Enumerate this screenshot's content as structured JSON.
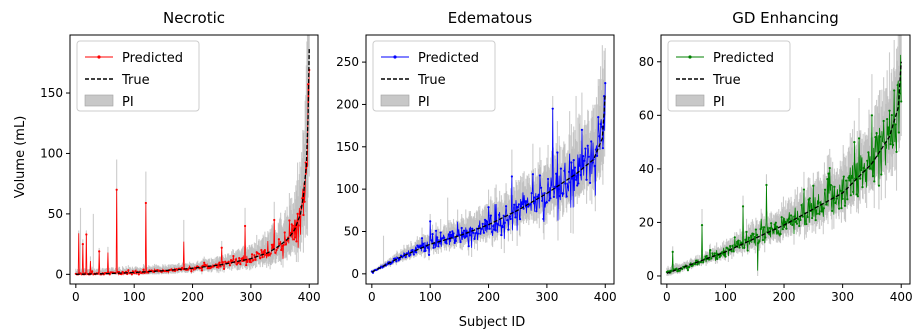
{
  "figure": {
    "xlabel": "Subject ID",
    "ylabel": "Volume (mL)",
    "legend_labels": [
      "Predicted",
      "True",
      "PI"
    ],
    "legend_position": "top-left",
    "grid": false
  },
  "chart_data": [
    {
      "type": "line",
      "title": "Necrotic",
      "xlabel": "",
      "ylabel": "Volume (mL)",
      "xlim": [
        -10,
        415
      ],
      "ylim": [
        -8,
        198
      ],
      "xticks": [
        0,
        100,
        200,
        300,
        400
      ],
      "yticks": [
        0,
        50,
        100,
        150
      ],
      "n_subjects": 401,
      "colors": {
        "predicted": "#ff0000",
        "true": "#000000",
        "pi": "#bbbbbb"
      },
      "true_curve": {
        "x": [
          0,
          50,
          100,
          150,
          200,
          250,
          300,
          330,
          350,
          365,
          375,
          385,
          390,
          395,
          398,
          400
        ],
        "y": [
          0,
          0.5,
          1.5,
          3,
          5,
          8,
          13,
          18,
          24,
          30,
          37,
          50,
          65,
          90,
          130,
          187
        ]
      },
      "spikes": [
        {
          "x": 5,
          "y": 34
        },
        {
          "x": 12,
          "y": 25
        },
        {
          "x": 18,
          "y": 33
        },
        {
          "x": 25,
          "y": 11
        },
        {
          "x": 40,
          "y": 19
        },
        {
          "x": 55,
          "y": 18
        },
        {
          "x": 70,
          "y": 70
        },
        {
          "x": 120,
          "y": 59
        },
        {
          "x": 185,
          "y": 27
        },
        {
          "x": 250,
          "y": 22
        },
        {
          "x": 290,
          "y": 40
        },
        {
          "x": 340,
          "y": 45
        },
        {
          "x": 380,
          "y": 50
        },
        {
          "x": 392,
          "y": 60
        }
      ],
      "pi_spikes": [
        {
          "x": 8,
          "y": 55
        },
        {
          "x": 30,
          "y": 50
        },
        {
          "x": 70,
          "y": 95
        },
        {
          "x": 120,
          "y": 85
        },
        {
          "x": 185,
          "y": 45
        },
        {
          "x": 290,
          "y": 55
        },
        {
          "x": 340,
          "y": 60
        }
      ],
      "noise": 0.25,
      "pi_width": 0.7
    },
    {
      "type": "line",
      "title": "Edematous",
      "xlabel": "",
      "ylabel": "",
      "xlim": [
        -10,
        415
      ],
      "ylim": [
        -12,
        282
      ],
      "xticks": [
        0,
        100,
        200,
        300,
        400
      ],
      "yticks": [
        0,
        50,
        100,
        150,
        200,
        250
      ],
      "n_subjects": 401,
      "colors": {
        "predicted": "#0000ff",
        "true": "#000000",
        "pi": "#bbbbbb"
      },
      "true_curve": {
        "x": [
          0,
          50,
          100,
          150,
          200,
          250,
          300,
          350,
          380,
          395,
          400
        ],
        "y": [
          2,
          20,
          35,
          45,
          58,
          75,
          95,
          118,
          135,
          160,
          212
        ]
      },
      "spikes": [
        {
          "x": 310,
          "y": 195
        },
        {
          "x": 100,
          "y": 62
        },
        {
          "x": 240,
          "y": 115
        },
        {
          "x": 360,
          "y": 170
        }
      ],
      "pi_spikes": [
        {
          "x": 20,
          "y": 45
        },
        {
          "x": 130,
          "y": 90
        },
        {
          "x": 310,
          "y": 210
        },
        {
          "x": 350,
          "y": 210
        },
        {
          "x": 395,
          "y": 270
        }
      ],
      "noise": 0.18,
      "pi_width": 0.32
    },
    {
      "type": "line",
      "title": "GD Enhancing",
      "xlabel": "",
      "ylabel": "",
      "xlim": [
        -10,
        415
      ],
      "ylim": [
        -3,
        90
      ],
      "xticks": [
        0,
        100,
        200,
        300,
        400
      ],
      "yticks": [
        0,
        20,
        40,
        60,
        80
      ],
      "n_subjects": 401,
      "colors": {
        "predicted": "#008000",
        "true": "#000000",
        "pi": "#bbbbbb"
      },
      "true_curve": {
        "x": [
          0,
          50,
          100,
          150,
          200,
          250,
          300,
          350,
          380,
          395,
          400
        ],
        "y": [
          1,
          5,
          9,
          14,
          19,
          25,
          31,
          42,
          52,
          63,
          80
        ]
      },
      "spikes": [
        {
          "x": 10,
          "y": 9
        },
        {
          "x": 60,
          "y": 19
        },
        {
          "x": 130,
          "y": 26
        },
        {
          "x": 170,
          "y": 34
        },
        {
          "x": 275,
          "y": 26
        },
        {
          "x": 320,
          "y": 50
        },
        {
          "x": 350,
          "y": 60
        },
        {
          "x": 155,
          "y": 2
        }
      ],
      "pi_spikes": [
        {
          "x": 60,
          "y": 25
        },
        {
          "x": 130,
          "y": 30
        },
        {
          "x": 170,
          "y": 38
        },
        {
          "x": 320,
          "y": 58
        }
      ],
      "noise": 0.2,
      "pi_width": 0.3
    }
  ]
}
